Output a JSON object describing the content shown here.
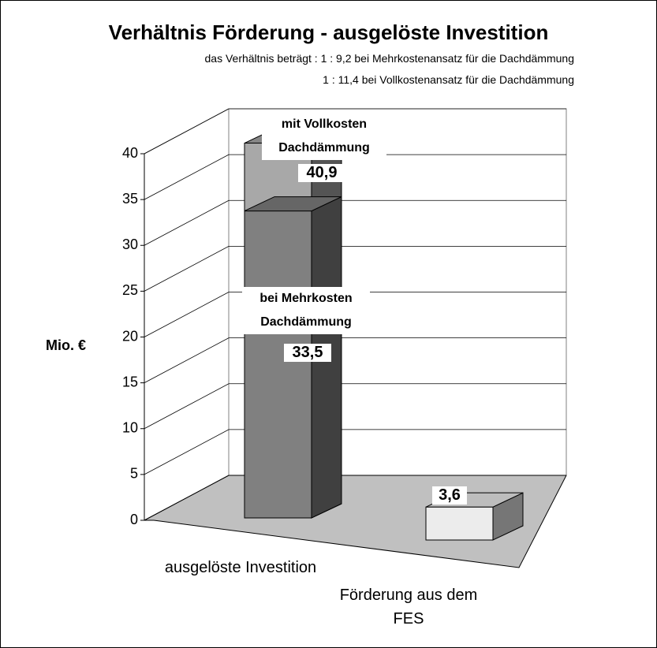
{
  "chart_data": {
    "type": "bar3d",
    "title": "Verhältnis Förderung - ausgelöste Investition",
    "subtitle": [
      "das Verhältnis beträgt : 1 : 9,2 bei Mehrkostenansatz für die Dachdämmung",
      "1 : 11,4 bei Vollkostenansatz für die Dachdämmung"
    ],
    "y_label": "Mio. €",
    "categories": [
      "ausgelöste Investition",
      "Förderung aus dem FES"
    ],
    "series": [
      {
        "name": "mit Vollkosten Dachdämmung",
        "color": "#a8a8a8",
        "values": [
          40.9,
          null
        ],
        "value_labels": [
          "40,9",
          null
        ]
      },
      {
        "name": "bei Mehrkosten Dachdämmung",
        "color": "#808080",
        "values": [
          33.5,
          null
        ],
        "value_labels": [
          "33,5",
          null
        ]
      },
      {
        "color": "#ececec",
        "values": [
          null,
          3.6
        ],
        "value_labels": [
          null,
          "3,6"
        ]
      }
    ],
    "ylim": [
      0,
      40
    ],
    "yticks": [
      0,
      5,
      10,
      15,
      20,
      25,
      30,
      35,
      40
    ],
    "grid": true
  }
}
